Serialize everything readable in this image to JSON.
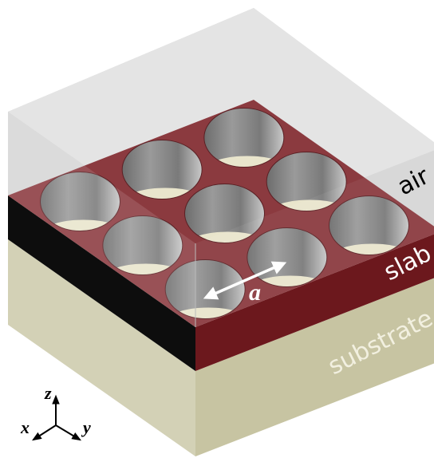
{
  "labels": {
    "air": "air",
    "slab": "slab",
    "substrate": "substrate",
    "lattice_constant": "a"
  },
  "axes": {
    "z": "z",
    "x": "x",
    "y": "y"
  }
}
